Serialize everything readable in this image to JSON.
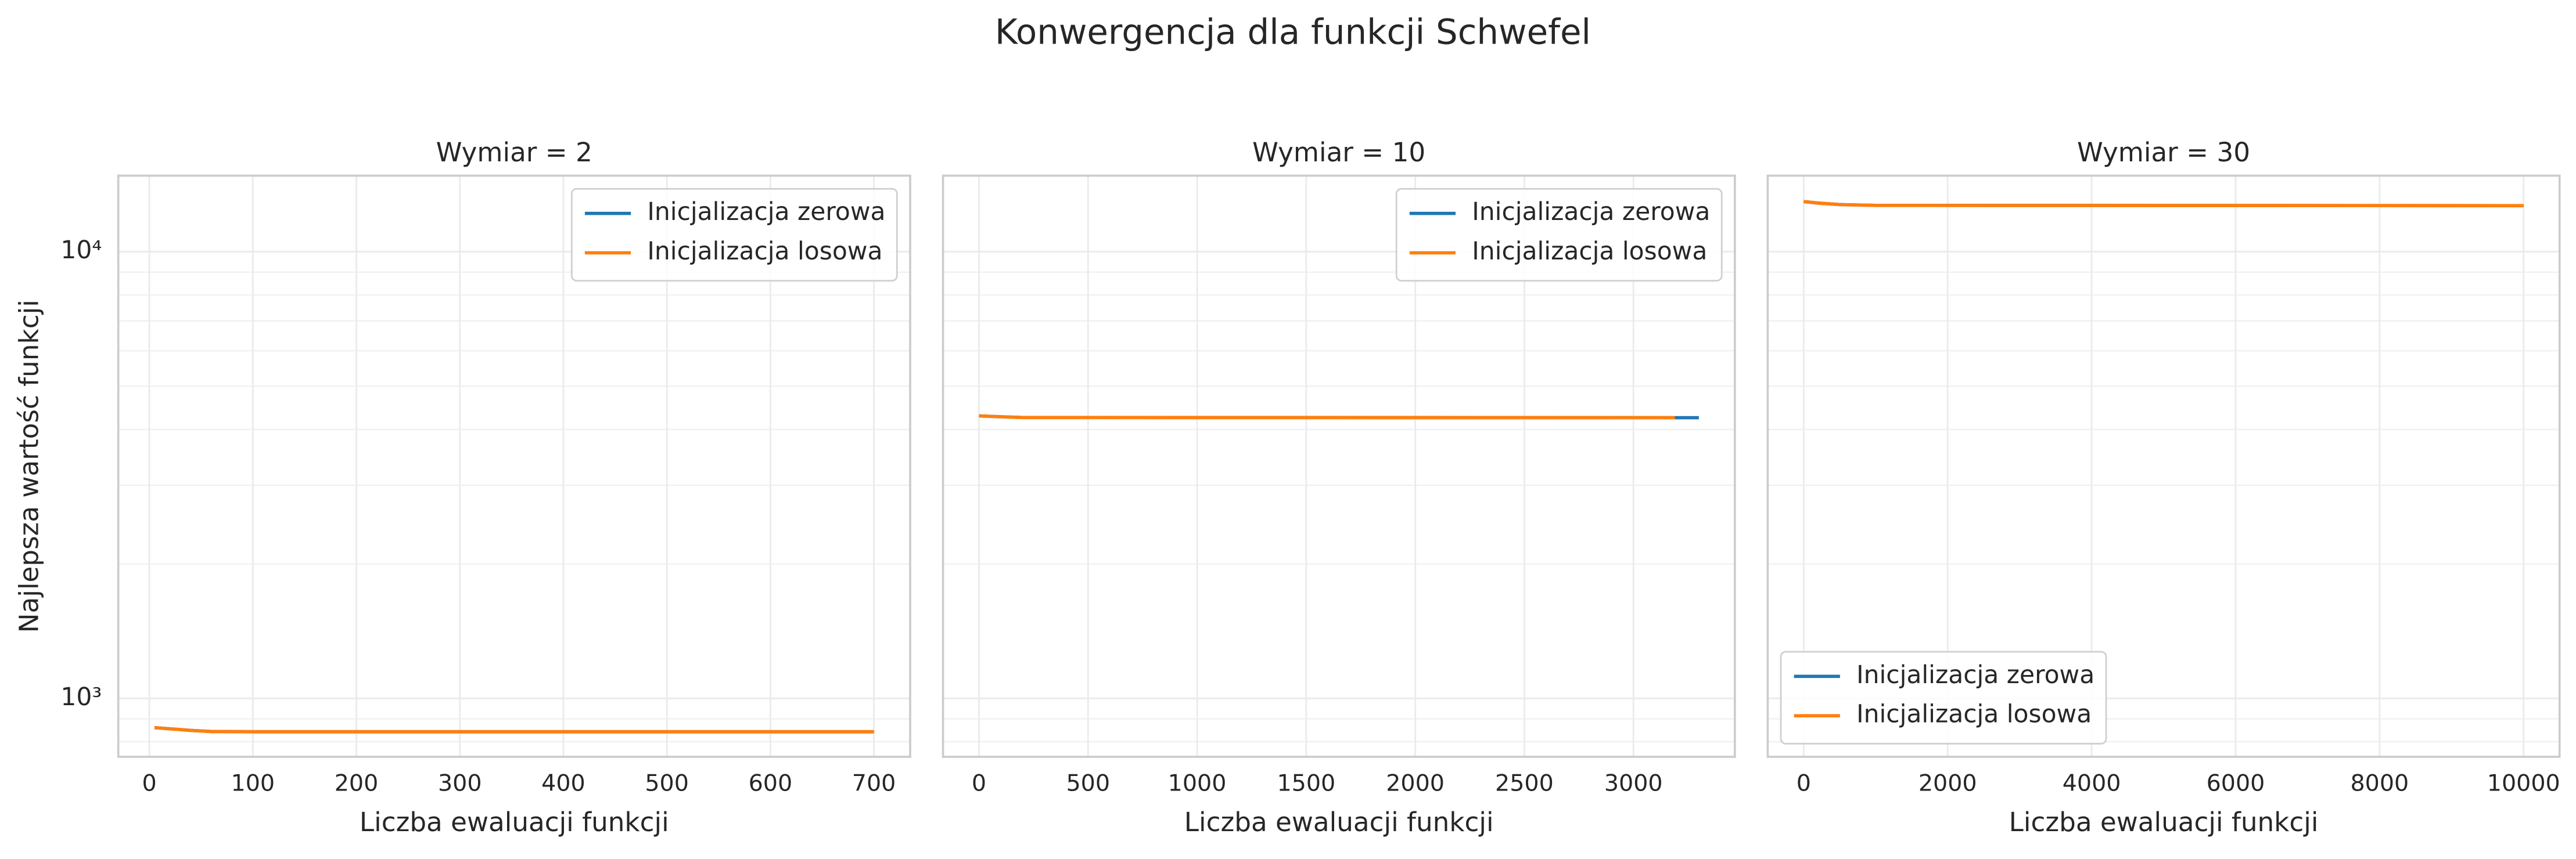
{
  "title": "Konwergencja dla funkcji Schwefel",
  "chart_data": [
    {
      "type": "line",
      "title": "Wymiar = 2",
      "xlabel": "Liczba ewaluacji funkcji",
      "ylabel": "Najlepsza wartość funkcji",
      "log_y": true,
      "grid": true,
      "legend": "upper right",
      "xlim": [
        -30,
        735
      ],
      "xticks": [
        0,
        100,
        200,
        300,
        400,
        500,
        600,
        700
      ],
      "ylim": [
        740,
        14800
      ],
      "yticks": [
        {
          "value": 1000,
          "label": "10³"
        },
        {
          "value": 10000,
          "label": "10⁴"
        }
      ],
      "yminorticks": [
        800,
        900,
        2000,
        3000,
        4000,
        5000,
        6000,
        7000,
        8000,
        9000
      ],
      "series": [
        {
          "name": "Inicjalizacja zerowa",
          "color": "#1f77b4",
          "x": [
            5,
            20,
            40,
            60,
            100,
            700
          ],
          "values": [
            860,
            855,
            848,
            843,
            842,
            842
          ]
        },
        {
          "name": "Inicjalizacja losowa",
          "color": "#ff7f0e",
          "x": [
            5,
            20,
            40,
            60,
            100,
            700
          ],
          "values": [
            860,
            855,
            848,
            843,
            842,
            842
          ]
        }
      ]
    },
    {
      "type": "line",
      "title": "Wymiar = 10",
      "xlabel": "Liczba ewaluacji funkcji",
      "log_y": true,
      "grid": true,
      "legend": "upper right",
      "xlim": [
        -165,
        3465
      ],
      "xticks": [
        0,
        500,
        1000,
        1500,
        2000,
        2500,
        3000
      ],
      "ylim": [
        740,
        14800
      ],
      "yticks": [
        {
          "value": 1000,
          "label": "10³"
        },
        {
          "value": 10000,
          "label": "10⁴"
        }
      ],
      "yminorticks": [
        800,
        900,
        2000,
        3000,
        4000,
        5000,
        6000,
        7000,
        8000,
        9000
      ],
      "series": [
        {
          "name": "Inicjalizacja zerowa",
          "color": "#1f77b4",
          "x": [
            0,
            100,
            200,
            3300
          ],
          "values": [
            4290,
            4270,
            4255,
            4250
          ]
        },
        {
          "name": "Inicjalizacja losowa",
          "color": "#ff7f0e",
          "x": [
            0,
            100,
            200,
            3190
          ],
          "values": [
            4290,
            4270,
            4255,
            4250
          ]
        }
      ]
    },
    {
      "type": "line",
      "title": "Wymiar = 30",
      "xlabel": "Liczba ewaluacji funkcji",
      "log_y": true,
      "grid": true,
      "legend": "lower left",
      "xlim": [
        -500,
        10500
      ],
      "xticks": [
        0,
        2000,
        4000,
        6000,
        8000,
        10000
      ],
      "ylim": [
        740,
        14800
      ],
      "yticks": [
        {
          "value": 1000,
          "label": "10³"
        },
        {
          "value": 10000,
          "label": "10⁴"
        }
      ],
      "yminorticks": [
        800,
        900,
        2000,
        3000,
        4000,
        5000,
        6000,
        7000,
        8000,
        9000
      ],
      "series": [
        {
          "name": "Inicjalizacja zerowa",
          "color": "#1f77b4",
          "x": [
            0,
            200,
            500,
            1000,
            10000
          ],
          "values": [
            12950,
            12850,
            12750,
            12700,
            12680
          ]
        },
        {
          "name": "Inicjalizacja losowa",
          "color": "#ff7f0e",
          "x": [
            0,
            200,
            500,
            1000,
            10000
          ],
          "values": [
            12950,
            12850,
            12750,
            12700,
            12680
          ]
        }
      ]
    }
  ]
}
